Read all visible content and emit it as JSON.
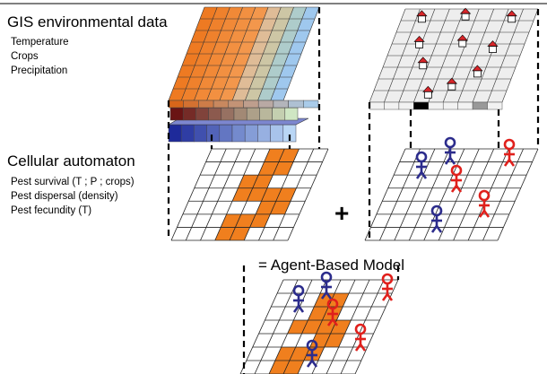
{
  "gis": {
    "title": "GIS environmental data",
    "layers": [
      "Temperature",
      "Crops",
      "Precipitation"
    ]
  },
  "ca": {
    "title": "Cellular automaton",
    "rules": [
      "Pest survival (T ; P ; crops)",
      "Pest dispersal (density)",
      "Pest fecundity (T)"
    ]
  },
  "plus": "+",
  "result": "= Agent-Based Model",
  "colors": {
    "pest_cell": "#f07f1e",
    "agent_blue": "#2c2c8c",
    "agent_red": "#e0201c",
    "house": "#d8262a",
    "grid_line": "#111111",
    "grid_fill_gray": "#eeeeee"
  },
  "icons": [
    "house-icon",
    "blue-agent-icon",
    "red-agent-icon"
  ]
}
